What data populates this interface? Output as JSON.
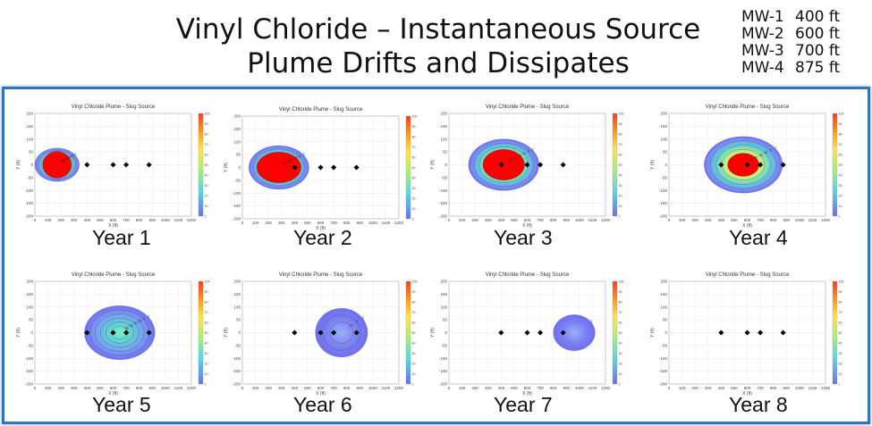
{
  "title_line1": "Vinyl Chloride – Instantaneous Source",
  "title_line2": "Plume Drifts and Dissipates",
  "wells": [
    {
      "name": "MW-1",
      "dist": "400 ft"
    },
    {
      "name": "MW-2",
      "dist": "600 ft"
    },
    {
      "name": "MW-3",
      "dist": "700 ft"
    },
    {
      "name": "MW-4",
      "dist": "875 ft"
    }
  ],
  "colors": {
    "frame": "#2e74c0",
    "plume_core": "#ff0000",
    "plume_outer": "#6f6ff0",
    "well_marker": "#000000"
  },
  "chart_data": [
    {
      "type": "heatmap",
      "year_label": "Year 1",
      "title": "Vinyl Chloride Plume - Slug Source",
      "xlabel": "X (ft)",
      "ylabel": "Y (ft)",
      "xlim": [
        0,
        1200
      ],
      "ylim": [
        -200,
        200
      ],
      "xticks": [
        0,
        100,
        200,
        300,
        400,
        500,
        600,
        700,
        800,
        900,
        1000,
        1100,
        1200
      ],
      "yticks": [
        200,
        150,
        100,
        50,
        0,
        -50,
        -100,
        -150,
        -200
      ],
      "colorbar_ticks": [
        100,
        90,
        80,
        70,
        60,
        50,
        40,
        30,
        20,
        10,
        2
      ],
      "plume": {
        "center_x": 170,
        "outer_semi_x": 170,
        "outer_semi_y": 65,
        "core_semi_x": 110,
        "core_semi_y": 52
      },
      "contour_labels": [
        "2",
        "5",
        "10",
        "20",
        "30",
        "50"
      ],
      "wells_x": [
        400,
        600,
        700,
        875
      ]
    },
    {
      "type": "heatmap",
      "year_label": "Year 2",
      "title": "Vinyl Chloride Plume - Slug Source",
      "xlabel": "X (ft)",
      "ylabel": "Y (ft)",
      "xlim": [
        0,
        1200
      ],
      "ylim": [
        -200,
        200
      ],
      "xticks": [
        0,
        100,
        200,
        300,
        400,
        500,
        600,
        700,
        800,
        900,
        1000,
        1100,
        1200
      ],
      "yticks": [
        200,
        150,
        100,
        50,
        0,
        -50,
        -100,
        -150,
        -200
      ],
      "colorbar_ticks": [
        100,
        90,
        80,
        70,
        60,
        50,
        40,
        30,
        20,
        10,
        2
      ],
      "plume": {
        "center_x": 280,
        "outer_semi_x": 230,
        "outer_semi_y": 85,
        "core_semi_x": 170,
        "core_semi_y": 60
      },
      "contour_labels": [
        "2",
        "5",
        "10",
        "20",
        "30",
        "50"
      ],
      "wells_x": [
        400,
        600,
        700,
        875
      ]
    },
    {
      "type": "heatmap",
      "year_label": "Year 3",
      "title": "Vinyl Chloride Plume - Slug Source",
      "xlabel": "X (ft)",
      "ylabel": "Y (ft)",
      "xlim": [
        0,
        1200
      ],
      "ylim": [
        -200,
        200
      ],
      "xticks": [
        0,
        100,
        200,
        300,
        400,
        500,
        600,
        700,
        800,
        900,
        1000,
        1100,
        1200
      ],
      "yticks": [
        200,
        150,
        100,
        50,
        0,
        -50,
        -100,
        -150,
        -200
      ],
      "colorbar_ticks": [
        100,
        90,
        80,
        70,
        60,
        50,
        40,
        30,
        20,
        10,
        2
      ],
      "plume": {
        "center_x": 420,
        "outer_semi_x": 270,
        "outer_semi_y": 100,
        "core_semi_x": 160,
        "core_semi_y": 60
      },
      "contour_labels": [
        "2",
        "5",
        "10",
        "20",
        "30",
        "50"
      ],
      "wells_x": [
        400,
        600,
        700,
        875
      ]
    },
    {
      "type": "heatmap",
      "year_label": "Year 4",
      "title": "Vinyl Chloride Plume - Slug Source",
      "xlabel": "X (ft)",
      "ylabel": "Y (ft)",
      "xlim": [
        0,
        1200
      ],
      "ylim": [
        -200,
        200
      ],
      "xticks": [
        0,
        100,
        200,
        300,
        400,
        500,
        600,
        700,
        800,
        900,
        1000,
        1100,
        1200
      ],
      "yticks": [
        200,
        150,
        100,
        50,
        0,
        -50,
        -100,
        -150,
        -200
      ],
      "colorbar_ticks": [
        100,
        90,
        80,
        70,
        60,
        50,
        40,
        30,
        20,
        10,
        2
      ],
      "plume": {
        "center_x": 570,
        "outer_semi_x": 300,
        "outer_semi_y": 110,
        "core_semi_x": 120,
        "core_semi_y": 45
      },
      "contour_labels": [
        "2",
        "5",
        "10",
        "20",
        "30",
        "50"
      ],
      "wells_x": [
        400,
        600,
        700,
        875
      ]
    },
    {
      "type": "heatmap",
      "year_label": "Year 5",
      "title": "Vinyl Chloride Plume - Slug Source",
      "xlabel": "X (ft)",
      "ylabel": "Y (ft)",
      "xlim": [
        0,
        1200
      ],
      "ylim": [
        -200,
        200
      ],
      "xticks": [
        0,
        100,
        200,
        300,
        400,
        500,
        600,
        700,
        800,
        900,
        1000,
        1100,
        1200
      ],
      "yticks": [
        200,
        150,
        100,
        50,
        0,
        -50,
        -100,
        -150,
        -200
      ],
      "colorbar_ticks": [
        100,
        90,
        80,
        70,
        60,
        50,
        40,
        30,
        20,
        10,
        2
      ],
      "plume": {
        "center_x": 650,
        "outer_semi_x": 270,
        "outer_semi_y": 105,
        "core_semi_x": 0,
        "core_semi_y": 0
      },
      "contour_labels": [
        "2",
        "5",
        "10",
        "20",
        "30",
        "40"
      ],
      "wells_x": [
        400,
        600,
        700,
        875
      ]
    },
    {
      "type": "heatmap",
      "year_label": "Year 6",
      "title": "Vinyl Chloride Plume - Slug Source",
      "xlabel": "X (ft)",
      "ylabel": "Y (ft)",
      "xlim": [
        0,
        1200
      ],
      "ylim": [
        -200,
        200
      ],
      "xticks": [
        0,
        100,
        200,
        300,
        400,
        500,
        600,
        700,
        800,
        900,
        1000,
        1100,
        1200
      ],
      "yticks": [
        200,
        150,
        100,
        50,
        0,
        -50,
        -100,
        -150,
        -200
      ],
      "colorbar_ticks": [
        100,
        90,
        80,
        70,
        60,
        50,
        40,
        30,
        20,
        10,
        2
      ],
      "plume": {
        "center_x": 760,
        "outer_semi_x": 200,
        "outer_semi_y": 95,
        "core_semi_x": 0,
        "core_semi_y": 0
      },
      "contour_labels": [
        "2",
        "5",
        "10"
      ],
      "wells_x": [
        400,
        600,
        700,
        875
      ]
    },
    {
      "type": "heatmap",
      "year_label": "Year 7",
      "title": "Vinyl Chloride Plume - Slug Source",
      "xlabel": "X (ft)",
      "ylabel": "Y (ft)",
      "xlim": [
        0,
        1200
      ],
      "ylim": [
        -200,
        200
      ],
      "xticks": [
        0,
        100,
        200,
        300,
        400,
        500,
        600,
        700,
        800,
        900,
        1000,
        1100,
        1200
      ],
      "yticks": [
        200,
        150,
        100,
        50,
        0,
        -50,
        -100,
        -150,
        -200
      ],
      "colorbar_ticks": [
        100,
        90,
        80,
        70,
        60,
        50,
        40,
        30,
        20,
        10,
        2
      ],
      "plume": {
        "center_x": 960,
        "outer_semi_x": 160,
        "outer_semi_y": 70,
        "core_semi_x": 0,
        "core_semi_y": 0
      },
      "contour_labels": [
        "2"
      ],
      "wells_x": [
        400,
        600,
        700,
        875
      ]
    },
    {
      "type": "heatmap",
      "year_label": "Year 8",
      "title": "Vinyl Chloride Plume - Slug Source",
      "xlabel": "X (ft)",
      "ylabel": "Y (ft)",
      "xlim": [
        0,
        1200
      ],
      "ylim": [
        -200,
        200
      ],
      "xticks": [
        0,
        100,
        200,
        300,
        400,
        500,
        600,
        700,
        800,
        900,
        1000,
        1100,
        1200
      ],
      "yticks": [
        200,
        150,
        100,
        50,
        0,
        -50,
        -100,
        -150,
        -200
      ],
      "colorbar_ticks": [
        100,
        90,
        80,
        70,
        60,
        50,
        40,
        30,
        20,
        10,
        2
      ],
      "plume": {
        "center_x": 0,
        "outer_semi_x": 0,
        "outer_semi_y": 0,
        "core_semi_x": 0,
        "core_semi_y": 0
      },
      "contour_labels": [],
      "wells_x": [
        400,
        600,
        700,
        875
      ]
    }
  ]
}
